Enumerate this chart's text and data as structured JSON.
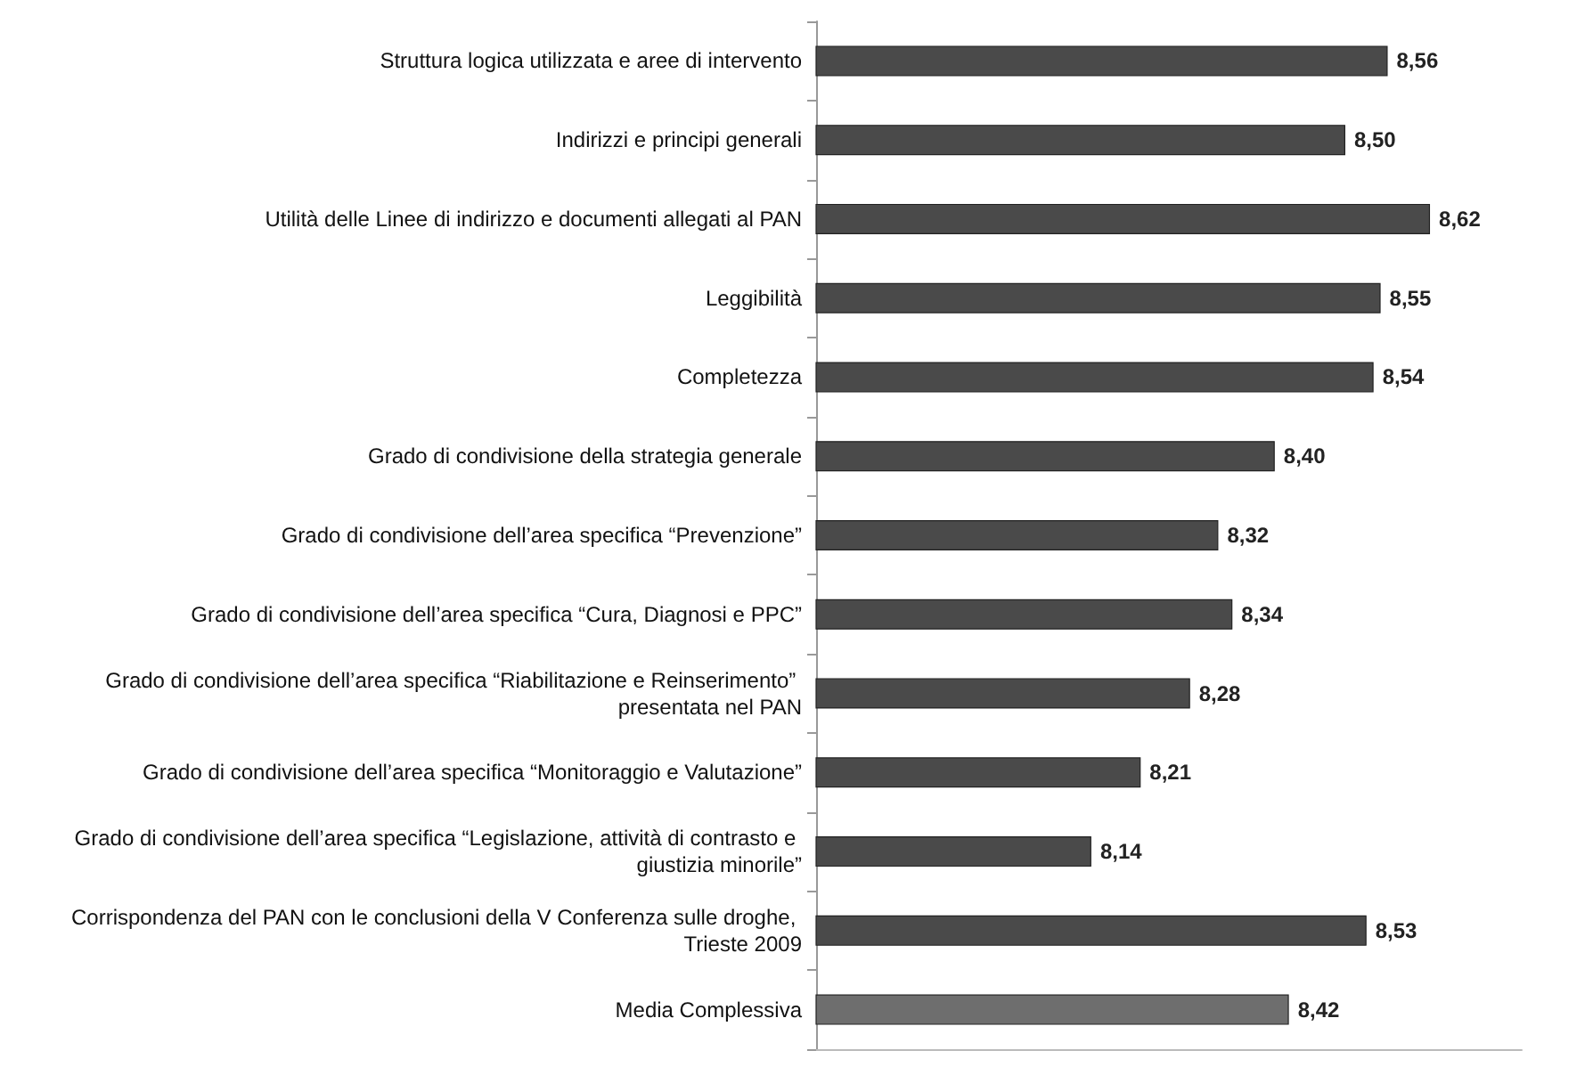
{
  "chart_data": {
    "type": "bar",
    "orientation": "horizontal",
    "categories": [
      "Struttura logica utilizzata e aree di intervento",
      "Indirizzi e principi generali",
      "Utilità delle Linee di indirizzo e documenti allegati al PAN",
      "Leggibilità",
      "Completezza",
      "Grado di condivisione della strategia generale",
      "Grado di condivisione dell’area specifica “Prevenzione”",
      "Grado di condivisione dell’area specifica “Cura, Diagnosi e PPC”",
      "Grado di condivisione dell’area specifica “Riabilitazione e Reinserimento” presentata nel PAN",
      "Grado di condivisione dell’area specifica “Monitoraggio e Valutazione”",
      "Grado di condivisione dell’area specifica “Legislazione, attività di contrasto e giustizia minorile”",
      "Corrispondenza del PAN con le conclusioni della V Conferenza sulle droghe, Trieste 2009",
      "Media Complessiva"
    ],
    "values": [
      8.56,
      8.5,
      8.62,
      8.55,
      8.54,
      8.4,
      8.32,
      8.34,
      8.28,
      8.21,
      8.14,
      8.53,
      8.42
    ],
    "value_labels": [
      "8,56",
      "8,50",
      "8,62",
      "8,55",
      "8,54",
      "8,40",
      "8,32",
      "8,34",
      "8,28",
      "8,21",
      "8,14",
      "8,53",
      "8,42"
    ],
    "colors": [
      "#4a4a4a",
      "#4a4a4a",
      "#4a4a4a",
      "#4a4a4a",
      "#4a4a4a",
      "#4a4a4a",
      "#4a4a4a",
      "#4a4a4a",
      "#4a4a4a",
      "#4a4a4a",
      "#4a4a4a",
      "#4a4a4a",
      "#6e6e6e"
    ],
    "xlim": [
      7.75,
      8.75
    ],
    "tick_labels": "y"
  }
}
